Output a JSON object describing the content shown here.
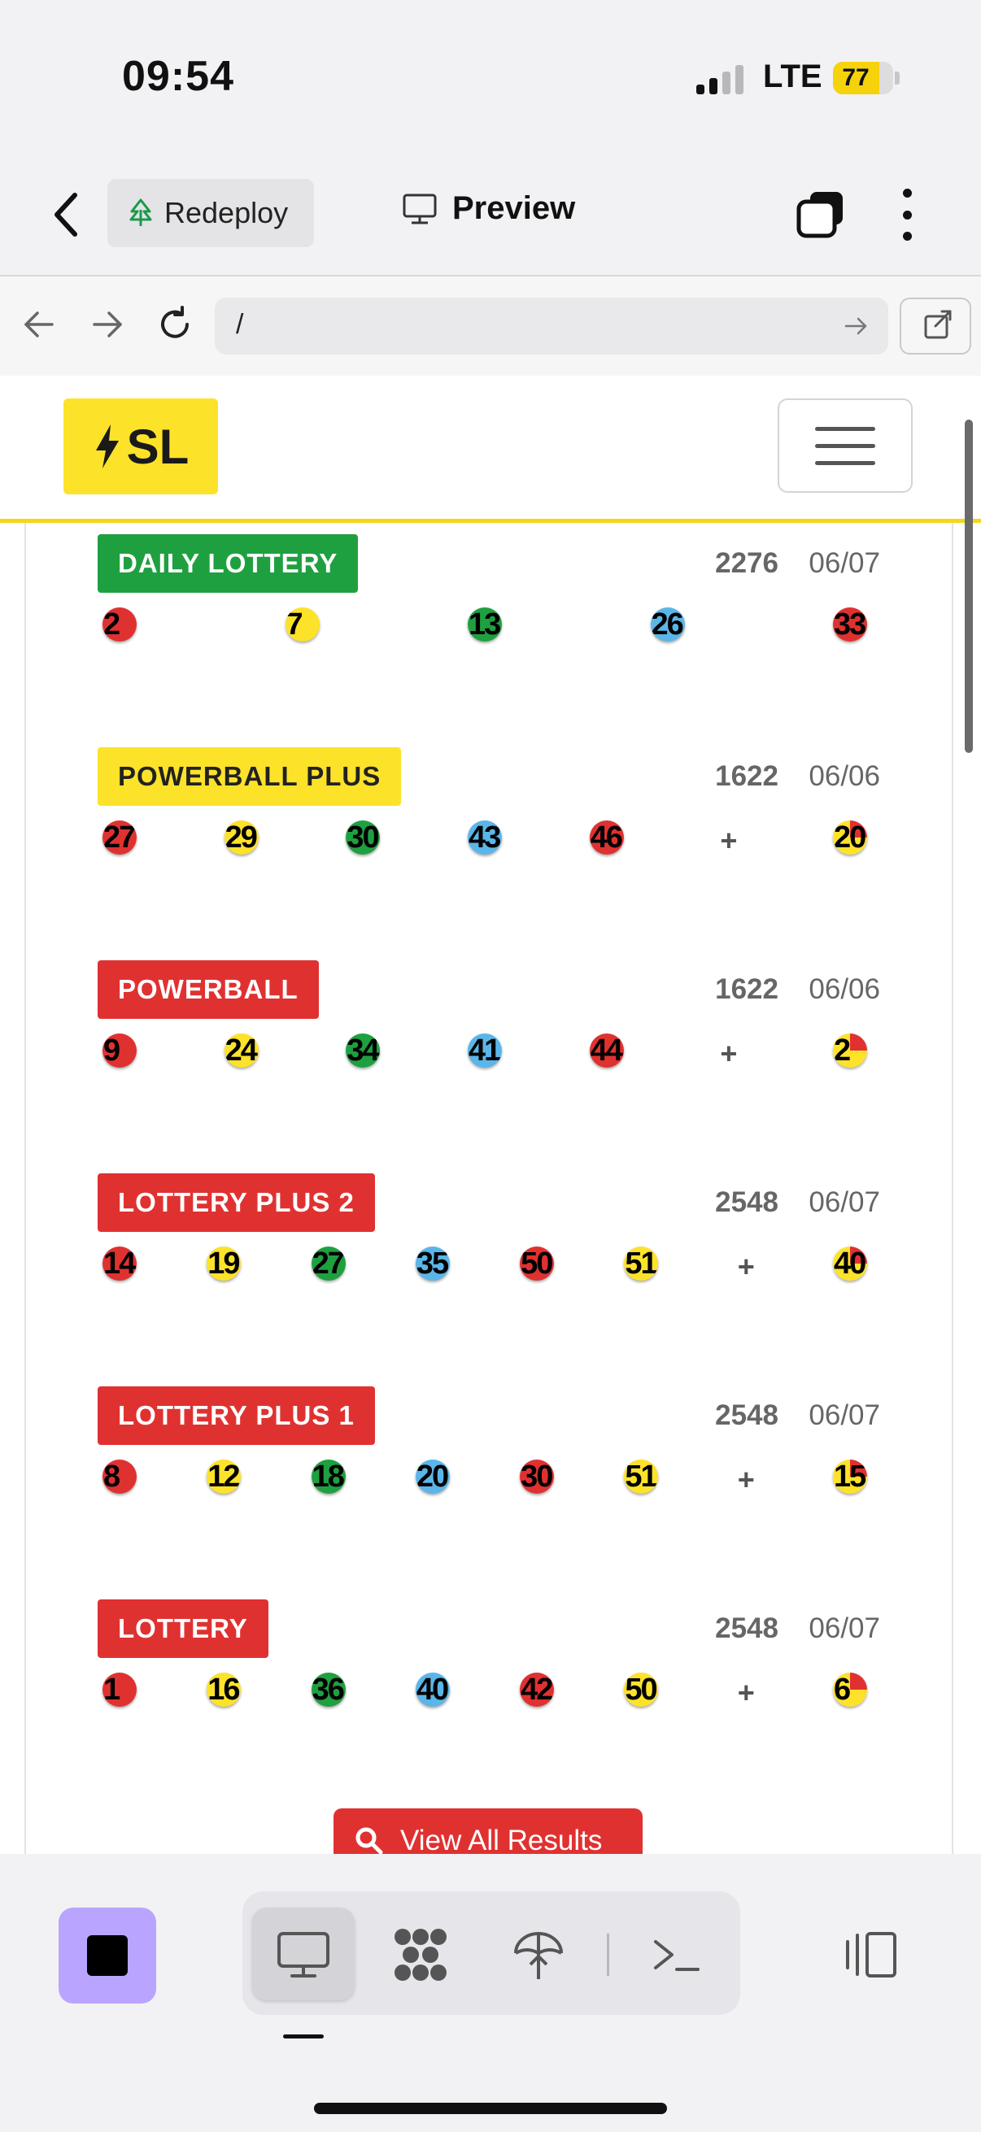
{
  "status_bar": {
    "time": "09:54",
    "network": "LTE",
    "battery": "77",
    "battery_level": 0.77
  },
  "toolbar": {
    "redeploy_label": "Redeploy",
    "preview_label": "Preview"
  },
  "browser": {
    "url": "/"
  },
  "site": {
    "logo_text": "SL"
  },
  "colors": {
    "red": "#e03131",
    "yellow": "#fde22a",
    "green": "#1fa040",
    "blue": "#5ab6e8"
  },
  "results": [
    {
      "name": "DAILY LOTTERY",
      "draw": "2276",
      "date": "06/07",
      "numbers": [
        "2",
        "7",
        "13",
        "26",
        "33"
      ],
      "colors": [
        "red",
        "yellow",
        "green",
        "blue",
        "red"
      ],
      "bonus": null
    },
    {
      "name": "POWERBALL PLUS",
      "draw": "1622",
      "date": "06/06",
      "numbers": [
        "27",
        "29",
        "30",
        "43",
        "46"
      ],
      "colors": [
        "red",
        "yellow",
        "green",
        "blue",
        "red"
      ],
      "bonus": "20"
    },
    {
      "name": "POWERBALL",
      "draw": "1622",
      "date": "06/06",
      "numbers": [
        "9",
        "24",
        "34",
        "41",
        "44"
      ],
      "colors": [
        "red",
        "yellow",
        "green",
        "blue",
        "red"
      ],
      "bonus": "2"
    },
    {
      "name": "LOTTERY PLUS 2",
      "draw": "2548",
      "date": "06/07",
      "numbers": [
        "14",
        "19",
        "27",
        "35",
        "50",
        "51"
      ],
      "colors": [
        "red",
        "yellow",
        "green",
        "blue",
        "red",
        "yellow"
      ],
      "bonus": "40"
    },
    {
      "name": "LOTTERY PLUS 1",
      "draw": "2548",
      "date": "06/07",
      "numbers": [
        "8",
        "12",
        "18",
        "20",
        "30",
        "51"
      ],
      "colors": [
        "red",
        "yellow",
        "green",
        "blue",
        "red",
        "yellow"
      ],
      "bonus": "15"
    },
    {
      "name": "LOTTERY",
      "draw": "2548",
      "date": "06/07",
      "numbers": [
        "1",
        "16",
        "36",
        "40",
        "42",
        "50"
      ],
      "colors": [
        "red",
        "yellow",
        "green",
        "blue",
        "red",
        "yellow"
      ],
      "bonus": "6"
    }
  ],
  "view_all_label": "View All Results"
}
